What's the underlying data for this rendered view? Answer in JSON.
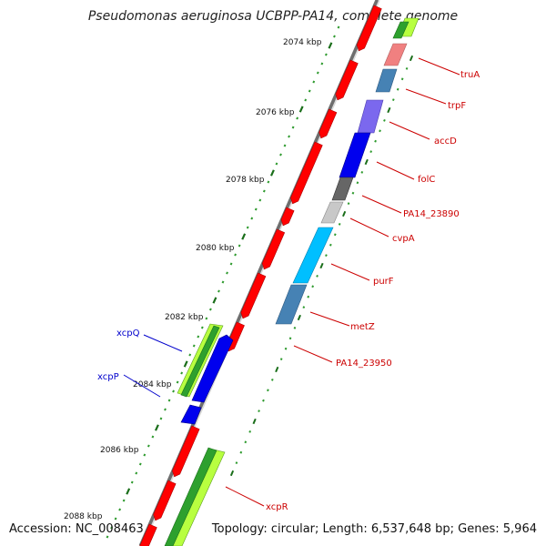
{
  "title": "Pseudomonas aeruginosa UCBPP-PA14, complete genome",
  "footer": {
    "accession": "Accession: NC_008463",
    "summary": "Topology: circular; Length: 6,537,648 bp; Genes: 5,964"
  },
  "ticks": [
    "2074 kbp",
    "2076 kbp",
    "2078 kbp",
    "2080 kbp",
    "2082 kbp",
    "2084 kbp",
    "2086 kbp",
    "2088 kbp"
  ],
  "gene_labels": [
    {
      "name": "truA",
      "color": "#cc0000"
    },
    {
      "name": "trpF",
      "color": "#cc0000"
    },
    {
      "name": "accD",
      "color": "#cc0000"
    },
    {
      "name": "folC",
      "color": "#cc0000"
    },
    {
      "name": "PA14_23890",
      "color": "#cc0000"
    },
    {
      "name": "cvpA",
      "color": "#cc0000"
    },
    {
      "name": "purF",
      "color": "#cc0000"
    },
    {
      "name": "metZ",
      "color": "#cc0000"
    },
    {
      "name": "PA14_23950",
      "color": "#cc0000"
    },
    {
      "name": "xcpR",
      "color": "#cc0000"
    },
    {
      "name": "xcpQ",
      "color": "#0000cc"
    },
    {
      "name": "xcpP",
      "color": "#0000cc"
    }
  ],
  "colors": {
    "backbone": "#8a8a8a",
    "cds": "#ff0000",
    "tick_major": "#1a6e1a",
    "tick_minor": "#2e9a2e",
    "gc_green": "#2ea02e",
    "gc_lime": "#b8ff40"
  }
}
